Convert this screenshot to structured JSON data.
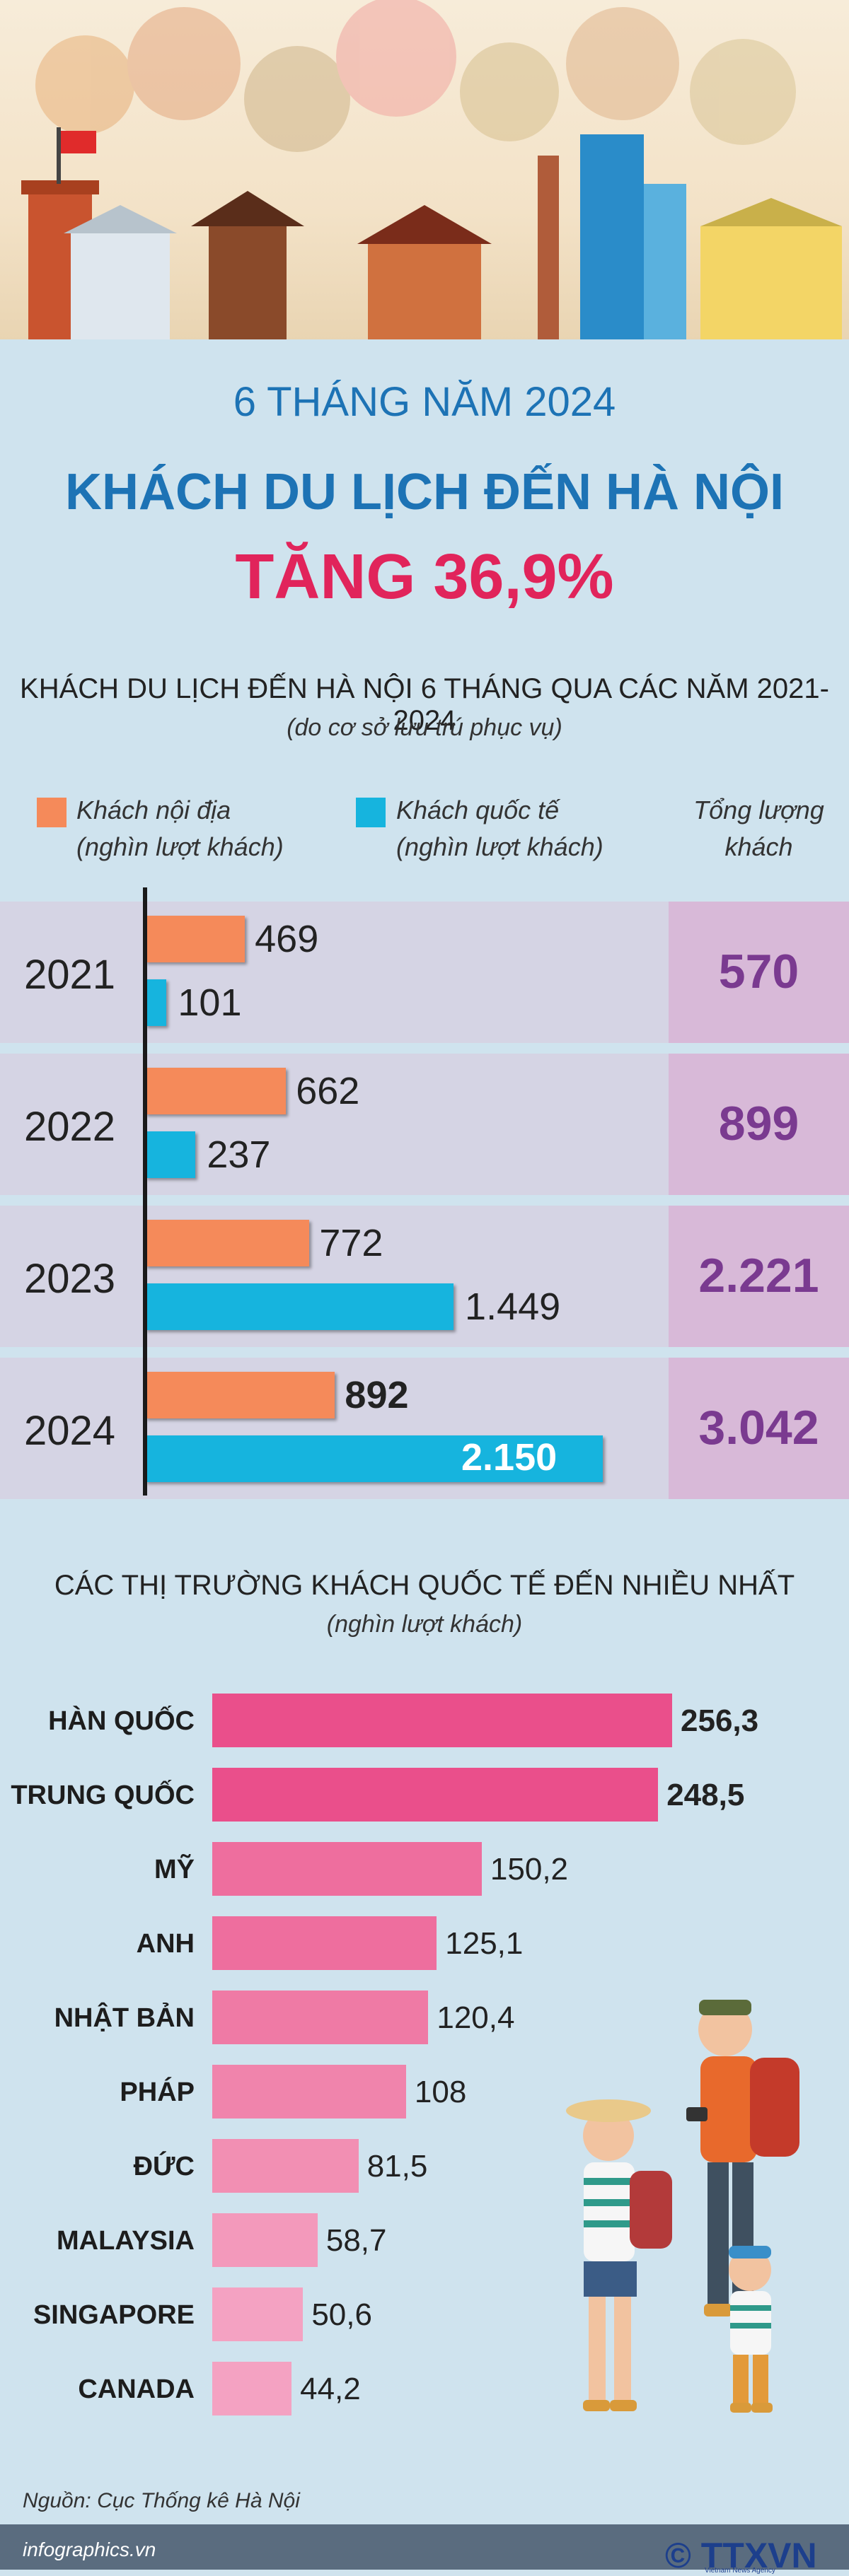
{
  "header": {
    "period": "6 THÁNG NĂM 2024",
    "headline": "KHÁCH DU LỊCH ĐẾN HÀ NỘI",
    "growth": "TĂNG 36,9%"
  },
  "colors": {
    "domestic": "#f58a5a",
    "international": "#16b4de",
    "total": "#7a3a90",
    "market_bar_dark": "#ea4f8b",
    "market_bar_light": "#f4a2c2"
  },
  "chart_data": [
    {
      "type": "bar",
      "title": "KHÁCH DU LỊCH ĐẾN HÀ NỘI 6 THÁNG QUA CÁC NĂM 2021-2024",
      "subtitle": "(do cơ sở lưu trú phục vụ)",
      "orientation": "horizontal",
      "categories": [
        "2021",
        "2022",
        "2023",
        "2024"
      ],
      "series": [
        {
          "name": "Khách nội địa (nghìn lượt khách)",
          "values": [
            469,
            662,
            772,
            892
          ],
          "labels": [
            "469",
            "662",
            "772",
            "892"
          ]
        },
        {
          "name": "Khách quốc tế (nghìn lượt khách)",
          "values": [
            101,
            237,
            1449,
            2150
          ],
          "labels": [
            "101",
            "237",
            "1.449",
            "2.150"
          ]
        }
      ],
      "totals_header": "Tổng lượng khách",
      "totals": [
        "570",
        "899",
        "2.221",
        "3.042"
      ],
      "legend": {
        "domestic_line1": "Khách nội địa",
        "domestic_line2": "(nghìn lượt khách)",
        "international_line1": "Khách quốc tế",
        "international_line2": "(nghìn lượt khách)",
        "total_line1": "Tổng lượng",
        "total_line2": "khách"
      }
    },
    {
      "type": "bar",
      "title": "CÁC THỊ TRƯỜNG KHÁCH QUỐC TẾ ĐẾN NHIỀU NHẤT",
      "subtitle": "(nghìn lượt khách)",
      "orientation": "horizontal",
      "categories": [
        "HÀN QUỐC",
        "TRUNG QUỐC",
        "MỸ",
        "ANH",
        "NHẬT BẢN",
        "PHÁP",
        "ĐỨC",
        "MALAYSIA",
        "SINGAPORE",
        "CANADA"
      ],
      "values": [
        256.3,
        248.5,
        150.2,
        125.1,
        120.4,
        108,
        81.5,
        58.7,
        50.6,
        44.2
      ],
      "labels": [
        "256,3",
        "248,5",
        "150,2",
        "125,1",
        "120,4",
        "108",
        "81,5",
        "58,7",
        "50,6",
        "44,2"
      ]
    }
  ],
  "footer": {
    "source": "Nguồn: Cục Thống kê Hà Nội",
    "site": "infographics.vn",
    "logo": "© TTXVN",
    "logo_sub": "Vietnam News Agency"
  }
}
